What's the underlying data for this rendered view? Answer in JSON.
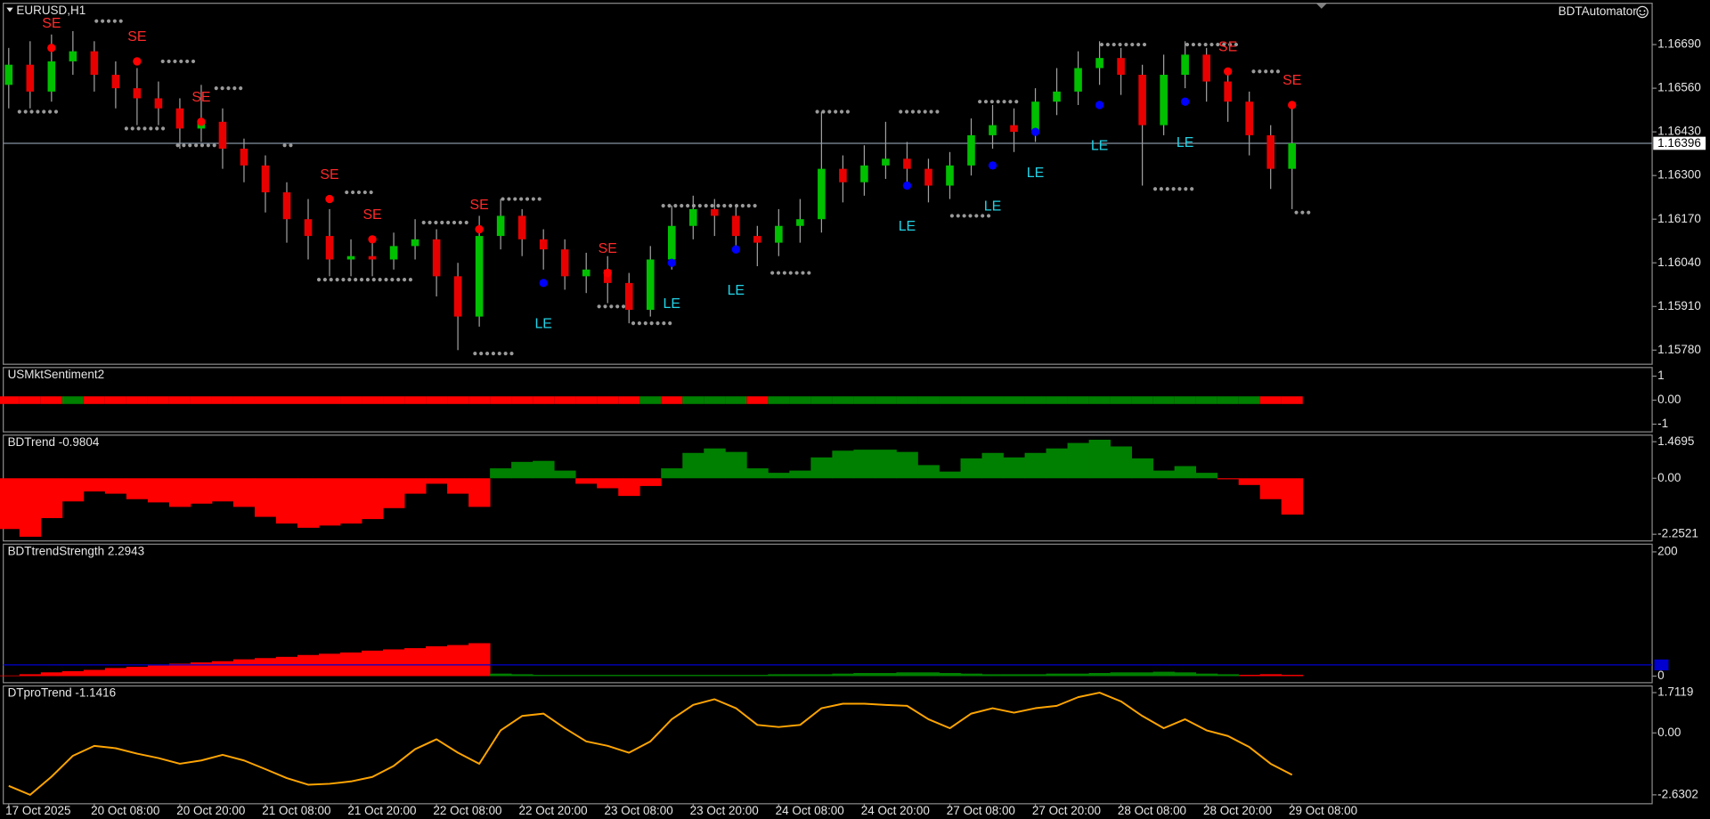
{
  "chart_data": [
    {
      "type": "candlestick",
      "title": "EURUSD,H1",
      "label": "BDTAutomator",
      "ylim": [
        1.15738,
        1.16813
      ],
      "yticks": [
        {
          "value": 1.1669,
          "label": "1.16690"
        },
        {
          "value": 1.1656,
          "label": "1.16560"
        },
        {
          "value": 1.1643,
          "label": "1.16430"
        },
        {
          "value": 1.163,
          "label": "1.16300"
        },
        {
          "value": 1.1617,
          "label": "1.16170"
        },
        {
          "value": 1.1604,
          "label": "1.16040"
        },
        {
          "value": 1.1591,
          "label": "1.15910"
        },
        {
          "value": 1.1578,
          "label": "1.15780"
        }
      ],
      "up_color": "#00c000",
      "down_color": "#e80000",
      "wick_color": "#a0a0a0",
      "open": [
        1.1657,
        1.1663,
        1.1655,
        1.1664,
        1.1667,
        1.166,
        1.1656,
        1.1653,
        1.165,
        1.1644,
        1.1646,
        1.1638,
        1.1633,
        1.1625,
        1.1617,
        1.1612,
        1.1605,
        1.1606,
        1.1605,
        1.1609,
        1.1611,
        1.16,
        1.1588,
        1.1612,
        1.1618,
        1.1611,
        1.1608,
        1.16,
        1.1602,
        1.1598,
        1.159,
        1.1605,
        1.1615,
        1.162,
        1.1618,
        1.1612,
        1.161,
        1.1615,
        1.1617,
        1.1632,
        1.1628,
        1.1633,
        1.1635,
        1.1632,
        1.1627,
        1.1633,
        1.1642,
        1.1645,
        1.1643,
        1.1652,
        1.1655,
        1.1662,
        1.1665,
        1.166,
        1.1645,
        1.166,
        1.1666,
        1.1658,
        1.1652,
        1.1642,
        1.1632
      ],
      "high": [
        1.1668,
        1.167,
        1.1672,
        1.1673,
        1.167,
        1.1664,
        1.1662,
        1.1658,
        1.1653,
        1.1657,
        1.165,
        1.1641,
        1.1636,
        1.1628,
        1.1623,
        1.162,
        1.1611,
        1.161,
        1.1613,
        1.1617,
        1.1614,
        1.1604,
        1.1618,
        1.1623,
        1.162,
        1.1614,
        1.1611,
        1.1607,
        1.1606,
        1.1601,
        1.1609,
        1.1621,
        1.1624,
        1.1623,
        1.1621,
        1.1615,
        1.162,
        1.1623,
        1.1649,
        1.1636,
        1.1639,
        1.1646,
        1.164,
        1.1635,
        1.1637,
        1.1647,
        1.1651,
        1.165,
        1.1656,
        1.1662,
        1.1667,
        1.167,
        1.1668,
        1.1663,
        1.1666,
        1.167,
        1.1668,
        1.1662,
        1.1655,
        1.1645,
        1.165
      ],
      "low": [
        1.165,
        1.165,
        1.1652,
        1.166,
        1.1655,
        1.165,
        1.1645,
        1.1645,
        1.1638,
        1.164,
        1.1632,
        1.1628,
        1.1619,
        1.161,
        1.1605,
        1.16,
        1.16,
        1.16,
        1.1602,
        1.1605,
        1.1594,
        1.1578,
        1.1585,
        1.1608,
        1.1606,
        1.1602,
        1.1596,
        1.1595,
        1.1592,
        1.1586,
        1.1588,
        1.1602,
        1.1611,
        1.1612,
        1.1607,
        1.1603,
        1.1606,
        1.161,
        1.1613,
        1.1622,
        1.1624,
        1.1629,
        1.1627,
        1.1622,
        1.1623,
        1.163,
        1.1638,
        1.1637,
        1.164,
        1.1648,
        1.1651,
        1.1657,
        1.1654,
        1.1627,
        1.1642,
        1.1656,
        1.1652,
        1.1646,
        1.1636,
        1.1626,
        1.162
      ],
      "close": [
        1.1663,
        1.1655,
        1.1664,
        1.1667,
        1.166,
        1.1656,
        1.1653,
        1.165,
        1.1644,
        1.1646,
        1.1638,
        1.1633,
        1.1625,
        1.1617,
        1.1612,
        1.1605,
        1.1606,
        1.1605,
        1.1609,
        1.1611,
        1.16,
        1.1588,
        1.1612,
        1.1618,
        1.1611,
        1.1608,
        1.16,
        1.1602,
        1.1598,
        1.159,
        1.1605,
        1.1615,
        1.162,
        1.1618,
        1.1612,
        1.161,
        1.1615,
        1.1617,
        1.1632,
        1.1628,
        1.1633,
        1.1635,
        1.1632,
        1.1627,
        1.1633,
        1.1642,
        1.1645,
        1.1643,
        1.1652,
        1.1655,
        1.1662,
        1.1665,
        1.166,
        1.1645,
        1.166,
        1.1666,
        1.1658,
        1.1652,
        1.1642,
        1.1632,
        1.16396
      ],
      "price_line": {
        "value": 1.16396,
        "label": "1.16396"
      },
      "level_color": "#9a9a9a",
      "levels": [
        {
          "from": 0.5,
          "to": 2.3,
          "price": 1.1649
        },
        {
          "from": 4.1,
          "to": 5.3,
          "price": 1.1676
        },
        {
          "from": 5.5,
          "to": 7.4,
          "price": 1.1644
        },
        {
          "from": 7.2,
          "to": 8.7,
          "price": 1.1664
        },
        {
          "from": 7.9,
          "to": 9.7,
          "price": 1.1639
        },
        {
          "from": 9.7,
          "to": 11,
          "price": 1.1656
        },
        {
          "from": 12.9,
          "to": 13.3,
          "price": 1.1639
        },
        {
          "from": 15.8,
          "to": 17.1,
          "price": 1.1625
        },
        {
          "from": 14.5,
          "to": 18.9,
          "price": 1.1599
        },
        {
          "from": 19.4,
          "to": 21.4,
          "price": 1.1616
        },
        {
          "from": 21.8,
          "to": 23.7,
          "price": 1.1577
        },
        {
          "from": 23.1,
          "to": 25,
          "price": 1.1623
        },
        {
          "from": 27.6,
          "to": 28.8,
          "price": 1.1591
        },
        {
          "from": 29.2,
          "to": 31,
          "price": 1.1586
        },
        {
          "from": 30.6,
          "to": 35,
          "price": 1.1621
        },
        {
          "from": 35.7,
          "to": 37.5,
          "price": 1.1601
        },
        {
          "from": 37.8,
          "to": 39.5,
          "price": 1.1649
        },
        {
          "from": 41.7,
          "to": 43.6,
          "price": 1.1649
        },
        {
          "from": 44.1,
          "to": 45.9,
          "price": 1.1618
        },
        {
          "from": 45.4,
          "to": 47.2,
          "price": 1.1652
        },
        {
          "from": 51.1,
          "to": 53.1,
          "price": 1.1669
        },
        {
          "from": 53.6,
          "to": 55.6,
          "price": 1.1626
        },
        {
          "from": 55.1,
          "to": 57.4,
          "price": 1.1669
        },
        {
          "from": 58.2,
          "to": 59.4,
          "price": 1.1661
        },
        {
          "from": 60.2,
          "to": 61,
          "price": 1.1619
        }
      ],
      "signals": [
        {
          "label": "SE",
          "text_color": "#ff2a2a",
          "dot_color": "#ff0000",
          "position": "above",
          "index": [
            2,
            6,
            9,
            15,
            17,
            22,
            28,
            57,
            60
          ],
          "price": [
            1.1668,
            1.1664,
            1.1646,
            1.1623,
            1.1611,
            1.1614,
            1.1601,
            1.1661,
            1.1651
          ]
        },
        {
          "label": "LE",
          "text_color": "#22d3e6",
          "dot_color": "#0000ff",
          "position": "below",
          "index": [
            25,
            31,
            34,
            42,
            46,
            48,
            51,
            55
          ],
          "price": [
            1.1598,
            1.1604,
            1.1608,
            1.1627,
            1.1633,
            1.1643,
            1.1651,
            1.1652
          ]
        }
      ]
    },
    {
      "type": "band",
      "title": "USMktSentiment2",
      "ylim": [
        -1.32,
        1.36
      ],
      "yticks": [
        1,
        {
          "value": 0,
          "label": "0.00"
        },
        -1
      ],
      "positive_color": "#008000",
      "negative_color": "#ff0000",
      "values": [
        -1,
        -1,
        -1,
        1,
        -1,
        -1,
        -1,
        -1,
        -1,
        -1,
        -1,
        -1,
        -1,
        -1,
        -1,
        -1,
        -1,
        -1,
        -1,
        -1,
        -1,
        -1,
        -1,
        -1,
        -1,
        -1,
        -1,
        -1,
        -1,
        -1,
        1,
        -1,
        1,
        1,
        1,
        -1,
        1,
        1,
        1,
        1,
        1,
        1,
        1,
        1,
        1,
        1,
        1,
        1,
        1,
        1,
        1,
        1,
        1,
        1,
        1,
        1,
        1,
        1,
        1,
        -1,
        -1
      ]
    },
    {
      "type": "bar",
      "title": "BDTrend -0.9804",
      "ylim": [
        -2.518,
        1.735
      ],
      "yticks": [
        1.4695,
        {
          "value": 0,
          "label": "0.00"
        },
        -2.2521
      ],
      "positive_color": "#008000",
      "negative_color": "#ff0000",
      "values": [
        -2.04,
        -2.35,
        -1.6,
        -0.93,
        -0.53,
        -0.62,
        -0.84,
        -0.97,
        -1.15,
        -1.02,
        -0.93,
        -1.15,
        -1.55,
        -1.82,
        -1.99,
        -1.9,
        -1.82,
        -1.64,
        -1.2,
        -0.62,
        -0.22,
        -0.62,
        -1.15,
        0.4,
        0.66,
        0.7,
        0.31,
        -0.22,
        -0.4,
        -0.71,
        -0.31,
        0.4,
        1.02,
        1.2,
        1.06,
        0.4,
        0.22,
        0.31,
        0.84,
        1.11,
        1.15,
        1.15,
        1.06,
        0.53,
        0.27,
        0.8,
        1.02,
        0.84,
        1.02,
        1.2,
        1.42,
        1.55,
        1.28,
        0.8,
        0.31,
        0.49,
        0.22,
        -0.04,
        -0.27,
        -0.84,
        -1.46
      ]
    },
    {
      "type": "bar",
      "title": "BDTtrendStrength 2.2943",
      "ylim": [
        -10.6,
        212.4
      ],
      "yticks": [
        200,
        0
      ],
      "level": 18,
      "level_color": "#0000d0",
      "series": [
        {
          "color": "#ff0000",
          "values": [
            1,
            3,
            6,
            8,
            10,
            13,
            15,
            17,
            20,
            22,
            24,
            27,
            29,
            31,
            34,
            36,
            38,
            41,
            43,
            45,
            48,
            50,
            53,
            null,
            null,
            null,
            null,
            null,
            null,
            null,
            null,
            null,
            null,
            null,
            null,
            null,
            null,
            null,
            null,
            null,
            null,
            null,
            null,
            null,
            null,
            null,
            null,
            null,
            null,
            null,
            null,
            null,
            null,
            null,
            null,
            null,
            null,
            null,
            2,
            3,
            2
          ]
        },
        {
          "color": "#008000",
          "values": [
            null,
            null,
            null,
            null,
            null,
            null,
            null,
            null,
            null,
            null,
            null,
            null,
            null,
            null,
            null,
            null,
            null,
            null,
            null,
            null,
            null,
            null,
            null,
            4,
            3,
            2,
            2,
            2,
            2,
            2,
            2,
            2,
            2,
            2,
            2,
            2,
            3,
            3,
            3,
            4,
            5,
            5,
            6,
            6,
            5,
            4,
            3,
            3,
            3,
            4,
            4,
            5,
            6,
            6,
            7,
            6,
            4,
            3,
            null,
            null,
            null
          ]
        }
      ]
    },
    {
      "type": "line",
      "title": "DTproTrend -1.1416",
      "ylim": [
        -3.008,
        1.995
      ],
      "yticks": [
        1.7119,
        {
          "value": 0,
          "label": "0.00"
        },
        -2.6302
      ],
      "color": "#ffa500",
      "values": [
        -2.25,
        -2.63,
        -1.86,
        -0.97,
        -0.55,
        -0.65,
        -0.88,
        -1.07,
        -1.31,
        -1.17,
        -0.93,
        -1.17,
        -1.54,
        -1.92,
        -2.2,
        -2.16,
        -2.06,
        -1.87,
        -1.4,
        -0.69,
        -0.27,
        -0.84,
        -1.31,
        0.11,
        0.72,
        0.82,
        0.2,
        -0.36,
        -0.55,
        -0.84,
        -0.36,
        0.58,
        1.19,
        1.43,
        1.05,
        0.34,
        0.25,
        0.34,
        1.05,
        1.24,
        1.24,
        1.19,
        1.15,
        0.58,
        0.2,
        0.82,
        1.05,
        0.86,
        1.05,
        1.15,
        1.52,
        1.71,
        1.34,
        0.72,
        0.2,
        0.58,
        0.11,
        -0.13,
        -0.6,
        -1.31,
        -1.78
      ],
      "categories": [
        "17 Oct 2025",
        null,
        null,
        null,
        "20 Oct 08:00",
        null,
        null,
        null,
        "20 Oct 20:00",
        null,
        null,
        null,
        "21 Oct 08:00",
        null,
        null,
        null,
        "21 Oct 20:00",
        null,
        null,
        null,
        "22 Oct 08:00",
        null,
        null,
        null,
        "22 Oct 20:00",
        null,
        null,
        null,
        "23 Oct 08:00",
        null,
        null,
        null,
        "23 Oct 20:00",
        null,
        null,
        null,
        "24 Oct 08:00",
        null,
        null,
        null,
        "24 Oct 20:00",
        null,
        null,
        null,
        "27 Oct 08:00",
        null,
        null,
        null,
        "27 Oct 20:00",
        null,
        null,
        null,
        "28 Oct 08:00",
        null,
        null,
        null,
        "28 Oct 20:00",
        null,
        null,
        null,
        "29 Oct 08:00"
      ]
    }
  ]
}
